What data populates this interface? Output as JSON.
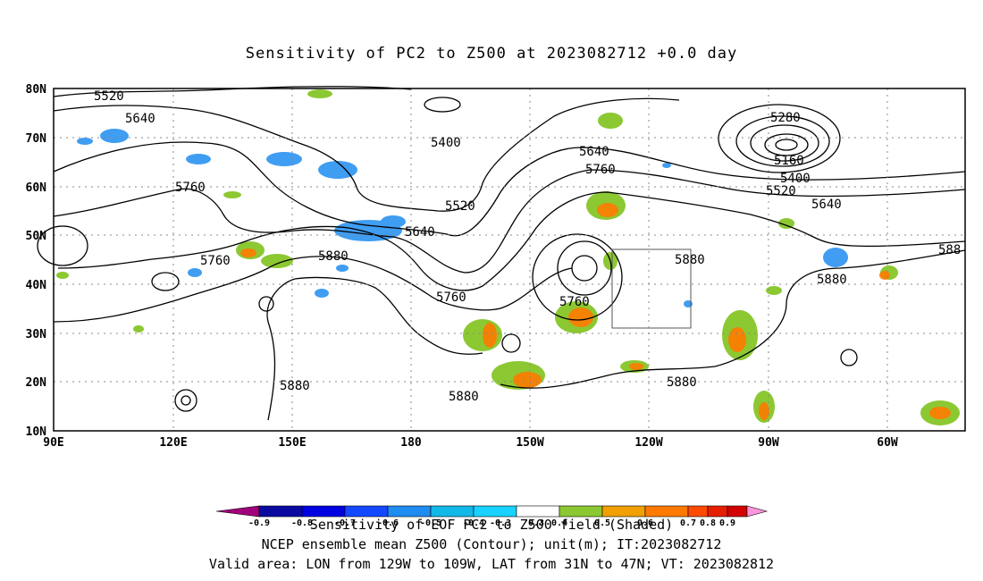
{
  "title": "Sensitivity of PC2 to Z500 at 2023082712 +0.0 day",
  "y_ticks": [
    "80N",
    "70N",
    "60N",
    "50N",
    "40N",
    "30N",
    "20N",
    "10N"
  ],
  "x_ticks": [
    "90E",
    "120E",
    "150E",
    "180",
    "150W",
    "120W",
    "90W",
    "60W"
  ],
  "contour_labels": [
    "5520",
    "5640",
    "5400",
    "5640",
    "5760",
    "5280",
    "5160",
    "5400",
    "5520",
    "5640",
    "5760",
    "5520",
    "5640",
    "5760",
    "5880",
    "5880",
    "5760",
    "5760",
    "5880",
    "5880",
    "5880",
    "5880",
    "588"
  ],
  "colorbar_labels": [
    "-0.9",
    "-0.8",
    "-0.7",
    "-0.6",
    "-0.5",
    "-0.4",
    "-0.3",
    "0.3",
    "0.4",
    "0.5",
    "0.6",
    "0.7",
    "0.8",
    "0.9"
  ],
  "colorbar_colors": [
    "#a0007a",
    "#0a0aa0",
    "#0000e0",
    "#1448ff",
    "#1e8cf0",
    "#12b8e8",
    "#19d2ff",
    "#ffffff",
    "#8cc832",
    "#f0a000",
    "#ff7a00",
    "#ff4a00",
    "#e61e00",
    "#d20000",
    "#ff96dc"
  ],
  "captions": [
    "Sensitivity of EOF PC2 to Z500 field (Shaded)",
    "NCEP ensemble mean Z500 (Contour); unit(m); IT:2023082712",
    "Valid area: LON from 129W to 109W, LAT from 31N to 47N; VT: 2023082812"
  ]
}
